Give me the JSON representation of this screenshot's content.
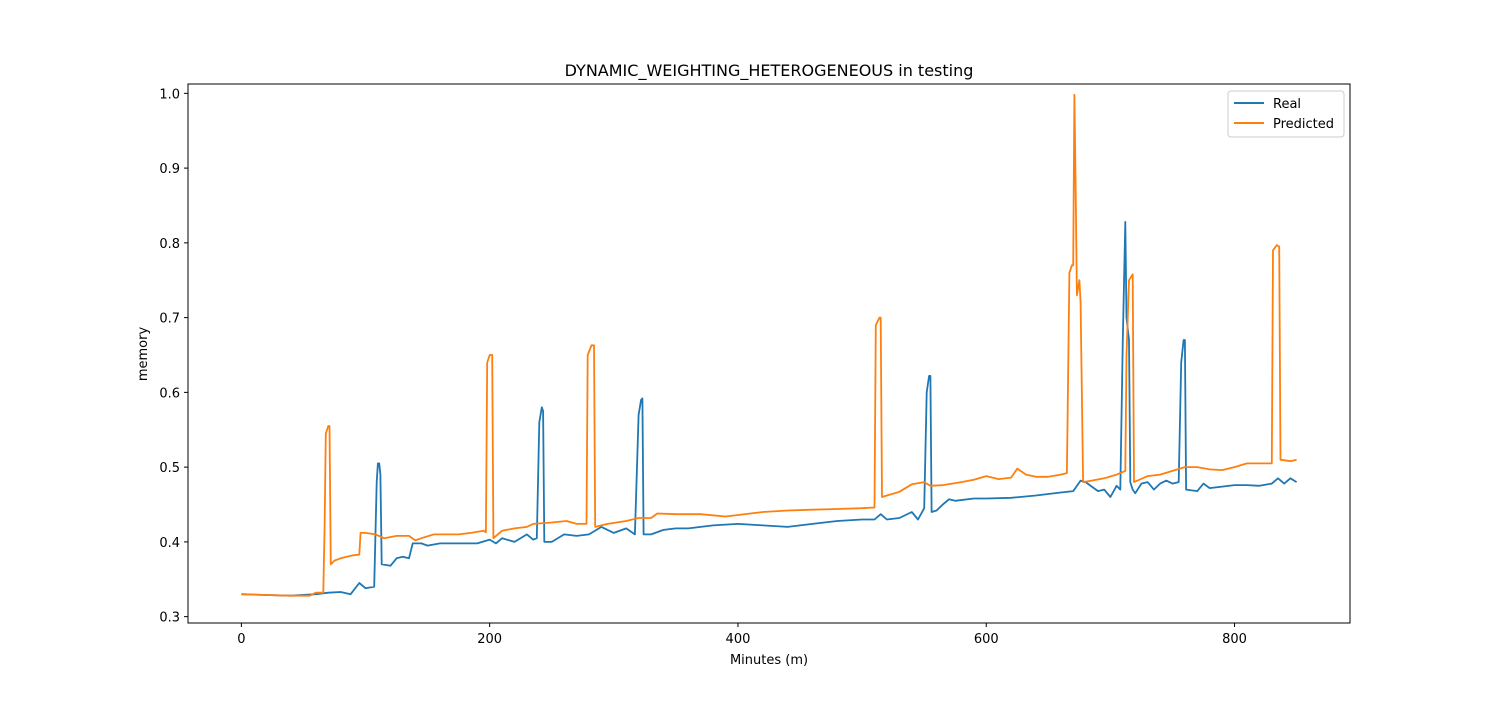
{
  "chart_data": {
    "type": "line",
    "title": "DYNAMIC_WEIGHTING_HETEROGENEOUS in testing",
    "xlabel": "Minutes (m)",
    "ylabel": "memory",
    "xlim": [
      -43,
      893
    ],
    "ylim": [
      0.2915,
      1.0125
    ],
    "xticks": [
      0,
      200,
      400,
      600,
      800
    ],
    "yticks": [
      0.3,
      0.4,
      0.5,
      0.6,
      0.7,
      0.8,
      0.9,
      1.0
    ],
    "xtick_labels": [
      "0",
      "200",
      "400",
      "600",
      "800"
    ],
    "ytick_labels": [
      "0.3",
      "0.4",
      "0.5",
      "0.6",
      "0.7",
      "0.8",
      "0.9",
      "1.0"
    ],
    "grid": false,
    "legend_position": "top-right",
    "series": [
      {
        "name": "Real",
        "color": "#1f77b4",
        "points": [
          [
            0,
            0.33
          ],
          [
            20,
            0.329
          ],
          [
            40,
            0.328
          ],
          [
            60,
            0.33
          ],
          [
            70,
            0.332
          ],
          [
            80,
            0.333
          ],
          [
            88,
            0.33
          ],
          [
            95,
            0.345
          ],
          [
            100,
            0.338
          ],
          [
            107,
            0.34
          ],
          [
            109,
            0.48
          ],
          [
            110,
            0.505
          ],
          [
            111,
            0.505
          ],
          [
            112,
            0.49
          ],
          [
            113,
            0.37
          ],
          [
            120,
            0.368
          ],
          [
            125,
            0.378
          ],
          [
            130,
            0.38
          ],
          [
            135,
            0.378
          ],
          [
            138,
            0.398
          ],
          [
            145,
            0.398
          ],
          [
            150,
            0.395
          ],
          [
            160,
            0.398
          ],
          [
            170,
            0.398
          ],
          [
            180,
            0.398
          ],
          [
            190,
            0.398
          ],
          [
            200,
            0.403
          ],
          [
            205,
            0.398
          ],
          [
            210,
            0.405
          ],
          [
            220,
            0.4
          ],
          [
            230,
            0.41
          ],
          [
            235,
            0.403
          ],
          [
            238,
            0.405
          ],
          [
            240,
            0.56
          ],
          [
            242,
            0.58
          ],
          [
            243,
            0.575
          ],
          [
            244,
            0.4
          ],
          [
            250,
            0.4
          ],
          [
            260,
            0.41
          ],
          [
            270,
            0.408
          ],
          [
            280,
            0.41
          ],
          [
            290,
            0.42
          ],
          [
            300,
            0.412
          ],
          [
            310,
            0.418
          ],
          [
            317,
            0.41
          ],
          [
            320,
            0.57
          ],
          [
            322,
            0.59
          ],
          [
            323,
            0.592
          ],
          [
            324,
            0.41
          ],
          [
            330,
            0.41
          ],
          [
            340,
            0.416
          ],
          [
            350,
            0.418
          ],
          [
            360,
            0.418
          ],
          [
            370,
            0.42
          ],
          [
            380,
            0.422
          ],
          [
            400,
            0.424
          ],
          [
            420,
            0.422
          ],
          [
            440,
            0.42
          ],
          [
            460,
            0.424
          ],
          [
            480,
            0.428
          ],
          [
            500,
            0.43
          ],
          [
            510,
            0.43
          ],
          [
            515,
            0.437
          ],
          [
            520,
            0.43
          ],
          [
            530,
            0.432
          ],
          [
            540,
            0.44
          ],
          [
            545,
            0.43
          ],
          [
            550,
            0.445
          ],
          [
            552,
            0.6
          ],
          [
            554,
            0.622
          ],
          [
            555,
            0.622
          ],
          [
            556,
            0.44
          ],
          [
            560,
            0.442
          ],
          [
            565,
            0.45
          ],
          [
            570,
            0.457
          ],
          [
            575,
            0.455
          ],
          [
            590,
            0.458
          ],
          [
            600,
            0.458
          ],
          [
            620,
            0.459
          ],
          [
            640,
            0.462
          ],
          [
            660,
            0.466
          ],
          [
            670,
            0.468
          ],
          [
            676,
            0.482
          ],
          [
            680,
            0.48
          ],
          [
            690,
            0.468
          ],
          [
            695,
            0.47
          ],
          [
            700,
            0.46
          ],
          [
            705,
            0.475
          ],
          [
            708,
            0.47
          ],
          [
            710,
            0.67
          ],
          [
            712,
            0.828
          ],
          [
            713,
            0.7
          ],
          [
            715,
            0.67
          ],
          [
            716,
            0.48
          ],
          [
            718,
            0.47
          ],
          [
            720,
            0.465
          ],
          [
            725,
            0.478
          ],
          [
            730,
            0.48
          ],
          [
            735,
            0.47
          ],
          [
            740,
            0.478
          ],
          [
            745,
            0.482
          ],
          [
            750,
            0.478
          ],
          [
            755,
            0.48
          ],
          [
            757,
            0.64
          ],
          [
            759,
            0.67
          ],
          [
            760,
            0.67
          ],
          [
            761,
            0.47
          ],
          [
            770,
            0.468
          ],
          [
            775,
            0.478
          ],
          [
            780,
            0.472
          ],
          [
            790,
            0.474
          ],
          [
            800,
            0.476
          ],
          [
            810,
            0.476
          ],
          [
            820,
            0.475
          ],
          [
            830,
            0.478
          ],
          [
            835,
            0.485
          ],
          [
            840,
            0.478
          ],
          [
            845,
            0.485
          ],
          [
            850,
            0.48
          ]
        ]
      },
      {
        "name": "Predicted",
        "color": "#ff7f0e",
        "points": [
          [
            0,
            0.33
          ],
          [
            20,
            0.329
          ],
          [
            40,
            0.328
          ],
          [
            55,
            0.328
          ],
          [
            60,
            0.332
          ],
          [
            66,
            0.332
          ],
          [
            67,
            0.42
          ],
          [
            68,
            0.545
          ],
          [
            70,
            0.555
          ],
          [
            71,
            0.555
          ],
          [
            72,
            0.37
          ],
          [
            75,
            0.375
          ],
          [
            80,
            0.378
          ],
          [
            85,
            0.38
          ],
          [
            90,
            0.382
          ],
          [
            95,
            0.383
          ],
          [
            96,
            0.412
          ],
          [
            100,
            0.412
          ],
          [
            108,
            0.41
          ],
          [
            115,
            0.405
          ],
          [
            125,
            0.408
          ],
          [
            135,
            0.408
          ],
          [
            140,
            0.402
          ],
          [
            145,
            0.405
          ],
          [
            155,
            0.41
          ],
          [
            165,
            0.41
          ],
          [
            175,
            0.41
          ],
          [
            185,
            0.412
          ],
          [
            195,
            0.415
          ],
          [
            197,
            0.413
          ],
          [
            198,
            0.64
          ],
          [
            200,
            0.65
          ],
          [
            202,
            0.65
          ],
          [
            203,
            0.405
          ],
          [
            210,
            0.415
          ],
          [
            220,
            0.418
          ],
          [
            230,
            0.42
          ],
          [
            235,
            0.424
          ],
          [
            250,
            0.426
          ],
          [
            262,
            0.428
          ],
          [
            270,
            0.424
          ],
          [
            278,
            0.424
          ],
          [
            279,
            0.65
          ],
          [
            282,
            0.663
          ],
          [
            284,
            0.663
          ],
          [
            285,
            0.42
          ],
          [
            295,
            0.424
          ],
          [
            310,
            0.428
          ],
          [
            320,
            0.432
          ],
          [
            330,
            0.432
          ],
          [
            335,
            0.438
          ],
          [
            350,
            0.437
          ],
          [
            370,
            0.437
          ],
          [
            390,
            0.434
          ],
          [
            400,
            0.436
          ],
          [
            420,
            0.44
          ],
          [
            440,
            0.442
          ],
          [
            460,
            0.443
          ],
          [
            480,
            0.444
          ],
          [
            500,
            0.445
          ],
          [
            510,
            0.446
          ],
          [
            511,
            0.69
          ],
          [
            514,
            0.7
          ],
          [
            515,
            0.7
          ],
          [
            516,
            0.46
          ],
          [
            530,
            0.467
          ],
          [
            540,
            0.477
          ],
          [
            550,
            0.48
          ],
          [
            555,
            0.475
          ],
          [
            565,
            0.476
          ],
          [
            580,
            0.48
          ],
          [
            590,
            0.483
          ],
          [
            600,
            0.488
          ],
          [
            610,
            0.484
          ],
          [
            620,
            0.486
          ],
          [
            625,
            0.498
          ],
          [
            632,
            0.49
          ],
          [
            640,
            0.487
          ],
          [
            650,
            0.487
          ],
          [
            660,
            0.49
          ],
          [
            665,
            0.492
          ],
          [
            667,
            0.76
          ],
          [
            669,
            0.77
          ],
          [
            670,
            0.77
          ],
          [
            671,
            0.998
          ],
          [
            672,
            0.88
          ],
          [
            673,
            0.73
          ],
          [
            675,
            0.75
          ],
          [
            676,
            0.72
          ],
          [
            678,
            0.48
          ],
          [
            685,
            0.482
          ],
          [
            695,
            0.485
          ],
          [
            705,
            0.49
          ],
          [
            712,
            0.495
          ],
          [
            713,
            0.65
          ],
          [
            715,
            0.75
          ],
          [
            718,
            0.758
          ],
          [
            719,
            0.48
          ],
          [
            730,
            0.488
          ],
          [
            740,
            0.49
          ],
          [
            750,
            0.495
          ],
          [
            760,
            0.5
          ],
          [
            770,
            0.5
          ],
          [
            780,
            0.497
          ],
          [
            790,
            0.496
          ],
          [
            800,
            0.5
          ],
          [
            810,
            0.505
          ],
          [
            820,
            0.505
          ],
          [
            830,
            0.505
          ],
          [
            831,
            0.79
          ],
          [
            834,
            0.797
          ],
          [
            836,
            0.795
          ],
          [
            837,
            0.51
          ],
          [
            845,
            0.508
          ],
          [
            850,
            0.51
          ]
        ]
      }
    ]
  }
}
